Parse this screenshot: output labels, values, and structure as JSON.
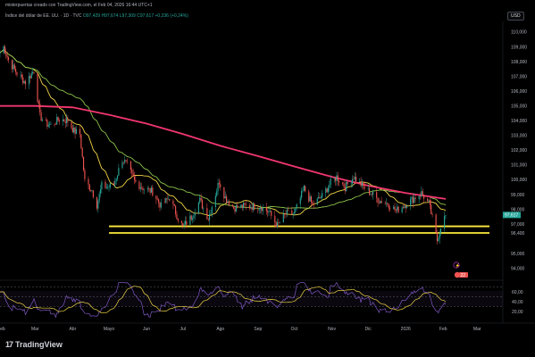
{
  "header": {
    "publish_line": "misterpuertas creado con TradingView.com, el Feb 04, 2026 16:44 UTC+1",
    "symbol_line": "Índice del dólar de EE. UU. · 1D · TVC",
    "ohlc": "O97,429 H97,674 L97,309 C97,617 +0,236 (+0,24%)",
    "currency_button": "USD"
  },
  "price_axis": {
    "ticks": [
      "110,000",
      "109,000",
      "108,000",
      "107,000",
      "106,000",
      "105,000",
      "104,000",
      "103,000",
      "102,000",
      "101,000",
      "100,000",
      "99,000",
      "98,000",
      "97,000",
      "96,400",
      "95,000",
      "94,000"
    ],
    "last_price": "97,617"
  },
  "indicator_axis": {
    "ticks": [
      "60,00",
      "40,00",
      "20,00"
    ]
  },
  "time_axis": {
    "ticks": [
      "Feb",
      "Mar",
      "Abr",
      "Mayo",
      "Jun",
      "Jul",
      "Ago",
      "Sep",
      "Oct",
      "Nov",
      "Dic",
      "2026",
      "Feb",
      "Mar"
    ]
  },
  "event_badge": "22",
  "brand": {
    "logo": "17",
    "name": "TradingView"
  },
  "chart_data": {
    "type": "candlestick",
    "colors": {
      "up": "#26a69a",
      "down": "#ef5350",
      "ma_fast": "#f0d446",
      "ma_mid": "#8bc34a",
      "ma_slow": "#f23670",
      "support": "#ffeb3b",
      "rsi": "#7e57c2",
      "rsi_ma": "#f0d446"
    },
    "ylim": [
      93.5,
      110.6
    ],
    "x_range": [
      "2025-01-31",
      "2026-03-20"
    ],
    "close_series": [
      [
        "2025-01-31",
        108.6
      ],
      [
        "2025-02-03",
        109.0
      ],
      [
        "2025-02-07",
        108.1
      ],
      [
        "2025-02-14",
        107.2
      ],
      [
        "2025-02-21",
        106.6
      ],
      [
        "2025-02-28",
        107.4
      ],
      [
        "2025-03-05",
        104.3
      ],
      [
        "2025-03-10",
        103.8
      ],
      [
        "2025-03-14",
        103.7
      ],
      [
        "2025-03-21",
        104.1
      ],
      [
        "2025-03-28",
        104.0
      ],
      [
        "2025-04-02",
        103.3
      ],
      [
        "2025-04-07",
        103.1
      ],
      [
        "2025-04-11",
        99.9
      ],
      [
        "2025-04-17",
        99.3
      ],
      [
        "2025-04-21",
        98.3
      ],
      [
        "2025-04-25",
        99.6
      ],
      [
        "2025-04-30",
        99.5
      ],
      [
        "2025-05-05",
        99.7
      ],
      [
        "2025-05-12",
        101.4
      ],
      [
        "2025-05-16",
        101.0
      ],
      [
        "2025-05-22",
        99.9
      ],
      [
        "2025-05-30",
        99.4
      ],
      [
        "2025-06-06",
        99.2
      ],
      [
        "2025-06-13",
        98.2
      ],
      [
        "2025-06-20",
        98.8
      ],
      [
        "2025-06-27",
        97.4
      ],
      [
        "2025-07-01",
        96.8
      ],
      [
        "2025-07-08",
        97.5
      ],
      [
        "2025-07-15",
        98.6
      ],
      [
        "2025-07-22",
        97.4
      ],
      [
        "2025-07-31",
        99.9
      ],
      [
        "2025-08-05",
        98.8
      ],
      [
        "2025-08-12",
        98.1
      ],
      [
        "2025-08-20",
        98.2
      ],
      [
        "2025-08-27",
        98.2
      ],
      [
        "2025-09-03",
        98.2
      ],
      [
        "2025-09-10",
        97.8
      ],
      [
        "2025-09-17",
        96.9
      ],
      [
        "2025-09-24",
        97.7
      ],
      [
        "2025-10-01",
        97.7
      ],
      [
        "2025-10-09",
        99.4
      ],
      [
        "2025-10-16",
        98.3
      ],
      [
        "2025-10-24",
        98.9
      ],
      [
        "2025-10-31",
        99.8
      ],
      [
        "2025-11-05",
        100.2
      ],
      [
        "2025-11-12",
        99.5
      ],
      [
        "2025-11-19",
        100.2
      ],
      [
        "2025-11-26",
        99.6
      ],
      [
        "2025-12-03",
        99.1
      ],
      [
        "2025-12-10",
        98.6
      ],
      [
        "2025-12-17",
        98.4
      ],
      [
        "2025-12-24",
        97.9
      ],
      [
        "2025-12-31",
        98.3
      ],
      [
        "2026-01-07",
        98.7
      ],
      [
        "2026-01-14",
        99.1
      ],
      [
        "2026-01-20",
        98.4
      ],
      [
        "2026-01-23",
        97.4
      ],
      [
        "2026-01-27",
        95.9
      ],
      [
        "2026-01-30",
        96.9
      ],
      [
        "2026-02-03",
        97.6
      ]
    ],
    "ma_slow_series": [
      [
        "2025-01-31",
        105.0
      ],
      [
        "2025-03-01",
        105.0
      ],
      [
        "2025-04-01",
        104.9
      ],
      [
        "2025-05-01",
        104.4
      ],
      [
        "2025-06-01",
        103.8
      ],
      [
        "2025-07-01",
        103.1
      ],
      [
        "2025-08-01",
        102.3
      ],
      [
        "2025-09-01",
        101.6
      ],
      [
        "2025-10-01",
        100.9
      ],
      [
        "2025-11-01",
        100.2
      ],
      [
        "2025-12-01",
        99.6
      ],
      [
        "2026-01-01",
        99.1
      ],
      [
        "2026-02-03",
        98.7
      ]
    ],
    "support_zone": [
      96.4,
      96.85
    ],
    "rsi_last": 44
  }
}
